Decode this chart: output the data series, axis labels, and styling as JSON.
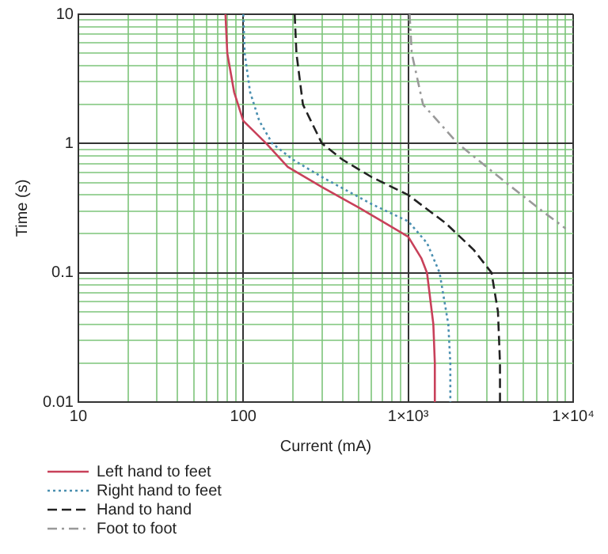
{
  "chart_data": {
    "type": "line",
    "xlabel": "Current (mA)",
    "ylabel": "Time (s)",
    "log": "xy",
    "grid": true,
    "legend": "bottom left",
    "marker": "none",
    "xlim": [
      10,
      10000
    ],
    "xticks": [
      10,
      {
        "value": 20,
        "label": null
      },
      {
        "value": 30,
        "label": null
      },
      {
        "value": 40,
        "label": null
      },
      {
        "value": 50,
        "label": null
      },
      {
        "value": 60,
        "label": null
      },
      {
        "value": 70,
        "label": null
      },
      {
        "value": 80,
        "label": null
      },
      {
        "value": 90,
        "label": null
      },
      100,
      {
        "value": 200,
        "label": null
      },
      {
        "value": 300,
        "label": null
      },
      {
        "value": 400,
        "label": null
      },
      {
        "value": 500,
        "label": null
      },
      {
        "value": 600,
        "label": null
      },
      {
        "value": 700,
        "label": null
      },
      {
        "value": 800,
        "label": null
      },
      {
        "value": 900,
        "label": null
      },
      {
        "value": 1000,
        "label": "1×10³"
      },
      {
        "value": 2000,
        "label": null
      },
      {
        "value": 3000,
        "label": null
      },
      {
        "value": 4000,
        "label": null
      },
      {
        "value": 5000,
        "label": null
      },
      {
        "value": 6000,
        "label": null
      },
      {
        "value": 7000,
        "label": null
      },
      {
        "value": 8000,
        "label": null
      },
      {
        "value": 9000,
        "label": null
      },
      {
        "value": 10000,
        "label": "1×10⁴"
      }
    ],
    "ylim": [
      0.01,
      10
    ],
    "yticks": [
      0.01,
      {
        "value": 0.02,
        "label": null
      },
      {
        "value": 0.03,
        "label": null
      },
      {
        "value": 0.04,
        "label": null
      },
      {
        "value": 0.05,
        "label": null
      },
      {
        "value": 0.06,
        "label": null
      },
      {
        "value": 0.07,
        "label": null
      },
      {
        "value": 0.08,
        "label": null
      },
      {
        "value": 0.09,
        "label": null
      },
      0.1,
      {
        "value": 0.2,
        "label": null
      },
      {
        "value": 0.3,
        "label": null
      },
      {
        "value": 0.4,
        "label": null
      },
      {
        "value": 0.5,
        "label": null
      },
      {
        "value": 0.6,
        "label": null
      },
      {
        "value": 0.7,
        "label": null
      },
      {
        "value": 0.8,
        "label": null
      },
      {
        "value": 0.9,
        "label": null
      },
      1,
      {
        "value": 2,
        "label": null
      },
      {
        "value": 3,
        "label": null
      },
      {
        "value": 4,
        "label": null
      },
      {
        "value": 5,
        "label": null
      },
      {
        "value": 6,
        "label": null
      },
      {
        "value": 7,
        "label": null
      },
      {
        "value": 8,
        "label": null
      },
      {
        "value": 9,
        "label": null
      },
      10
    ],
    "series": [
      {
        "name": "Left hand to feet",
        "color": "#c8415a",
        "line_style": "solid",
        "x": [
          78,
          80,
          88,
          100,
          138,
          186,
          300,
          500,
          660,
          1000,
          1200,
          1300,
          1420,
          1450,
          1450
        ],
        "values": [
          10,
          5,
          2.5,
          1.5,
          1,
          0.66,
          0.46,
          0.32,
          0.26,
          0.19,
          0.13,
          0.1,
          0.04,
          0.02,
          0.01
        ]
      },
      {
        "name": "Right hand to feet",
        "color": "#4a8fb0",
        "line_style": "dotted",
        "x": [
          100,
          102,
          110,
          125,
          150,
          200,
          300,
          600,
          1000,
          1300,
          1550,
          1750,
          1800,
          1800
        ],
        "values": [
          10,
          5,
          2.5,
          1.5,
          1,
          0.75,
          0.55,
          0.34,
          0.25,
          0.17,
          0.1,
          0.04,
          0.02,
          0.01
        ]
      },
      {
        "name": "Hand to hand",
        "color": "#222222",
        "line_style": "dashed",
        "x": [
          205,
          210,
          230,
          300,
          400,
          600,
          1000,
          1700,
          2500,
          3200,
          3500,
          3600,
          3600
        ],
        "values": [
          10,
          5,
          2,
          1,
          0.75,
          0.55,
          0.4,
          0.24,
          0.15,
          0.1,
          0.05,
          0.02,
          0.01
        ]
      },
      {
        "name": "Foot to foot",
        "color": "#999999",
        "line_style": "dashdot",
        "x": [
          1020,
          1050,
          1230,
          2000,
          3900,
          6500,
          9000
        ],
        "values": [
          10,
          5,
          2,
          1,
          0.5,
          0.3,
          0.22
        ]
      }
    ]
  }
}
